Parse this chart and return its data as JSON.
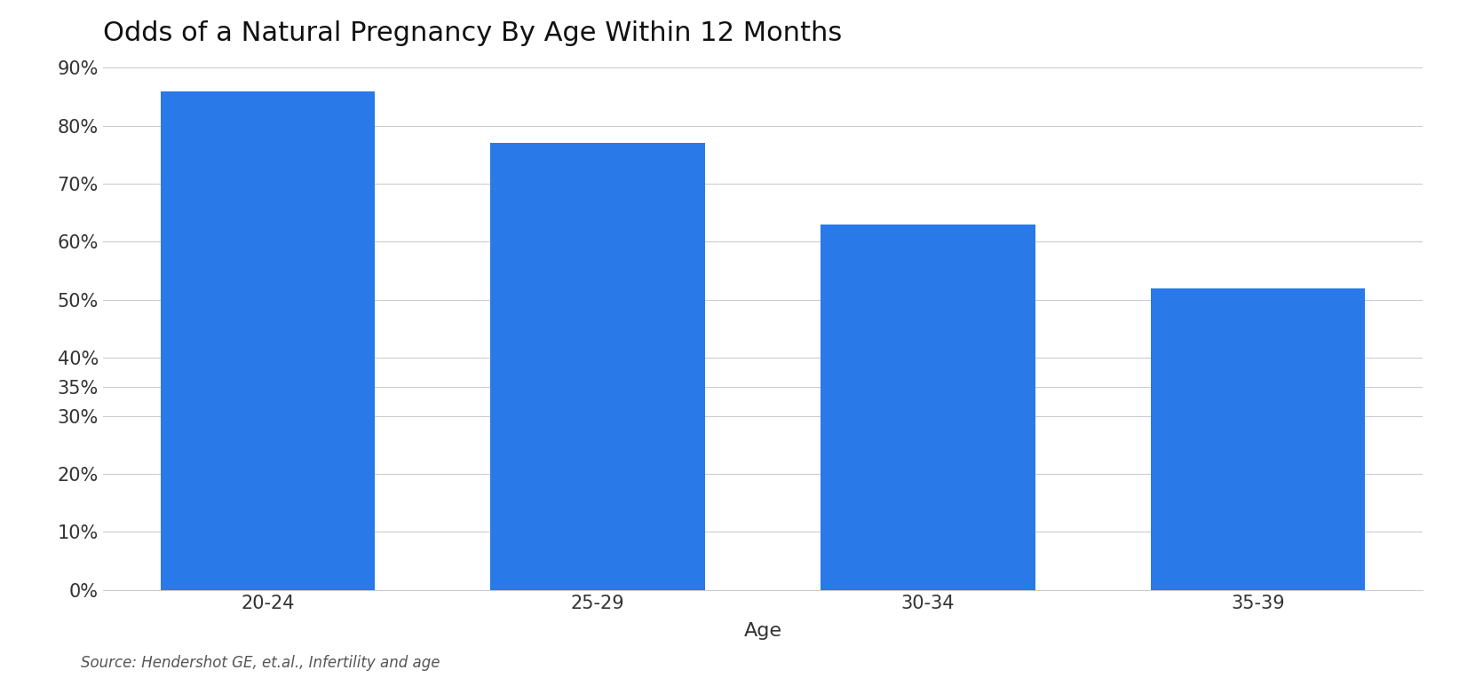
{
  "title": "Odds of a Natural Pregnancy By Age Within 12 Months",
  "categories": [
    "20-24",
    "25-29",
    "30-34",
    "35-39"
  ],
  "values": [
    0.86,
    0.77,
    0.63,
    0.52
  ],
  "bar_color": "#2979E8",
  "ylabel": "",
  "xlabel": "Age",
  "source_text": "Source: Hendershot GE, et.al., Infertility and age",
  "ylim": [
    0,
    0.9
  ],
  "yticks": [
    0,
    0.1,
    0.2,
    0.3,
    0.35,
    0.4,
    0.5,
    0.6,
    0.7,
    0.8,
    0.9
  ],
  "background_color": "#ffffff",
  "grid_color": "#cccccc",
  "title_fontsize": 22,
  "tick_fontsize": 15,
  "xlabel_fontsize": 16,
  "source_fontsize": 12,
  "bar_width": 0.65
}
